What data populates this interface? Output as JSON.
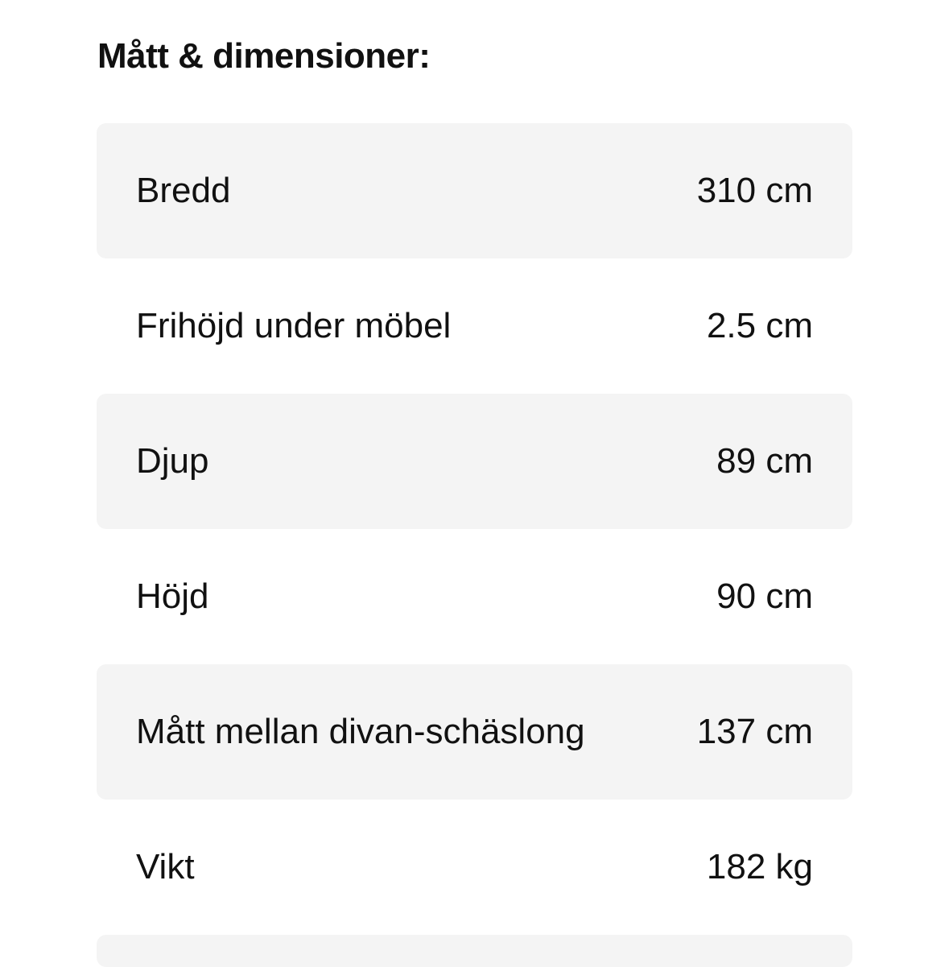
{
  "section": {
    "title": "Mått & dimensioner:"
  },
  "specs": [
    {
      "label": "Bredd",
      "value": "310 cm"
    },
    {
      "label": "Frihöjd under möbel",
      "value": "2.5 cm"
    },
    {
      "label": "Djup",
      "value": "89 cm"
    },
    {
      "label": "Höjd",
      "value": "90 cm"
    },
    {
      "label": "Mått mellan divan-schäslong",
      "value": "137 cm"
    },
    {
      "label": "Vikt",
      "value": "182 kg"
    }
  ]
}
